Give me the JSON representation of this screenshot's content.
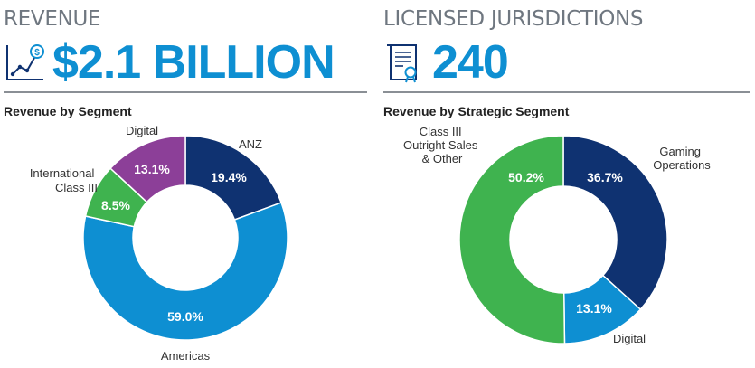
{
  "kpis": [
    {
      "label": "REVENUE",
      "value": "$2.1 BILLION",
      "icon": "growth-chart-dollar-icon"
    },
    {
      "label": "LICENSED JURISDICTIONS",
      "value": "240",
      "icon": "license-document-icon"
    }
  ],
  "colors": {
    "navy": "#0f3271",
    "blue": "#0e8fd2",
    "green": "#3fb34f",
    "purple": "#8c3f98",
    "kpi_text": "#0e8fd2"
  },
  "chart_data": [
    {
      "type": "pie",
      "title": "Revenue by Segment",
      "slices": [
        {
          "name": "ANZ",
          "value": 19.4,
          "label": "19.4%",
          "color": "#0f3271"
        },
        {
          "name": "Americas",
          "value": 59.0,
          "label": "59.0%",
          "color": "#0e8fd2"
        },
        {
          "name": "International Class III",
          "value": 8.5,
          "label": "8.5%",
          "color": "#3fb34f"
        },
        {
          "name": "Digital",
          "value": 13.1,
          "label": "13.1%",
          "color": "#8c3f98"
        }
      ]
    },
    {
      "type": "pie",
      "title": "Revenue by Strategic Segment",
      "slices": [
        {
          "name": "Gaming Operations",
          "value": 36.7,
          "label": "36.7%",
          "color": "#0f3271"
        },
        {
          "name": "Digital",
          "value": 13.1,
          "label": "13.1%",
          "color": "#0e8fd2"
        },
        {
          "name": "Class III Outright Sales & Other",
          "value": 50.2,
          "label": "50.2%",
          "color": "#3fb34f"
        }
      ]
    }
  ]
}
